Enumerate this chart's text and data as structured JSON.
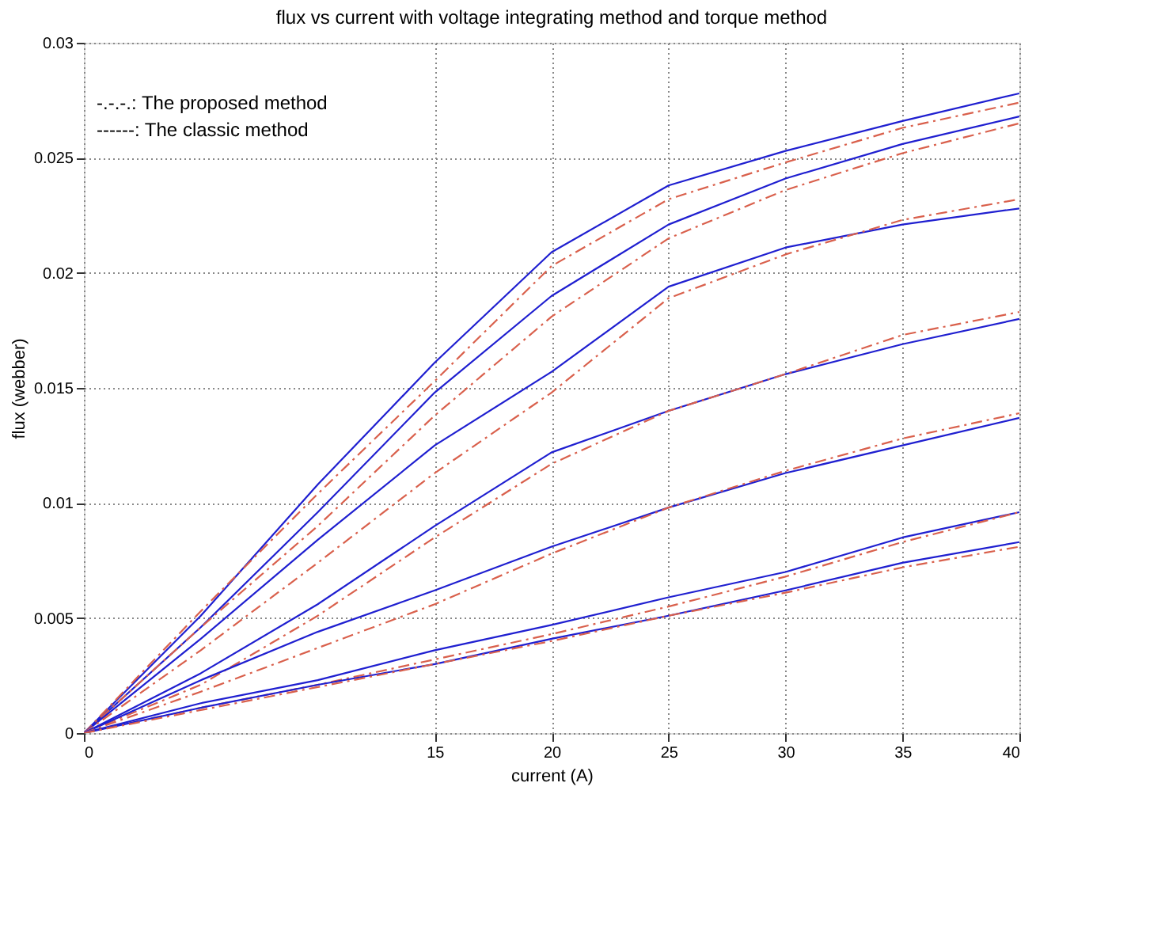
{
  "chart_data": {
    "type": "line",
    "title": "flux vs current with voltage integrating method and torque method",
    "xlabel": "current (A)",
    "ylabel": "flux (webber)",
    "x": [
      0,
      5,
      10,
      15,
      20,
      25,
      30,
      35,
      40
    ],
    "xlim": [
      0,
      40
    ],
    "xticks": [
      0,
      15,
      20,
      25,
      30,
      35,
      40
    ],
    "ylim": [
      0,
      0.03
    ],
    "yticks": [
      0,
      0.005,
      0.01,
      0.015,
      0.02,
      0.025,
      0.03
    ],
    "grid": true,
    "marker": "none",
    "annotations": [
      "-.-.-.: The proposed method",
      "------: The classic method"
    ],
    "series": [
      {
        "color": "#1f1fd0",
        "line_style": "solid",
        "values": [
          0,
          0.0051,
          0.0108,
          0.0161,
          0.0209,
          0.0238,
          0.0253,
          0.0266,
          0.0278
        ]
      },
      {
        "color": "#d9604c",
        "line_style": "dashed",
        "values": [
          0,
          0.0053,
          0.0104,
          0.0153,
          0.0203,
          0.0232,
          0.0248,
          0.0263,
          0.0274
        ]
      },
      {
        "color": "#1f1fd0",
        "line_style": "solid",
        "values": [
          0,
          0.0046,
          0.0096,
          0.0148,
          0.019,
          0.0221,
          0.0241,
          0.0256,
          0.0268
        ]
      },
      {
        "color": "#d9604c",
        "line_style": "dashed",
        "values": [
          0,
          0.0046,
          0.009,
          0.0138,
          0.0181,
          0.0215,
          0.0236,
          0.0252,
          0.0265
        ]
      },
      {
        "color": "#1f1fd0",
        "line_style": "solid",
        "values": [
          0,
          0.0041,
          0.0084,
          0.0125,
          0.0157,
          0.0194,
          0.0211,
          0.0221,
          0.0228
        ]
      },
      {
        "color": "#d9604c",
        "line_style": "dashed",
        "values": [
          0,
          0.0036,
          0.0074,
          0.0113,
          0.0148,
          0.0189,
          0.0208,
          0.0223,
          0.0232
        ]
      },
      {
        "color": "#1f1fd0",
        "line_style": "solid",
        "values": [
          0,
          0.0026,
          0.0056,
          0.009,
          0.0122,
          0.014,
          0.0156,
          0.0169,
          0.018
        ]
      },
      {
        "color": "#d9604c",
        "line_style": "dashed",
        "values": [
          0,
          0.0021,
          0.0051,
          0.0085,
          0.0117,
          0.014,
          0.0156,
          0.0173,
          0.0183
        ]
      },
      {
        "color": "#1f1fd0",
        "line_style": "solid",
        "values": [
          0,
          0.0023,
          0.0044,
          0.0062,
          0.0081,
          0.0098,
          0.0113,
          0.0125,
          0.0137
        ]
      },
      {
        "color": "#d9604c",
        "line_style": "dashed",
        "values": [
          0,
          0.0018,
          0.0037,
          0.0056,
          0.0078,
          0.0098,
          0.0114,
          0.0128,
          0.0139
        ]
      },
      {
        "color": "#1f1fd0",
        "line_style": "solid",
        "values": [
          0,
          0.0013,
          0.0023,
          0.0036,
          0.0047,
          0.0059,
          0.007,
          0.0085,
          0.0096
        ]
      },
      {
        "color": "#d9604c",
        "line_style": "dashed",
        "values": [
          0,
          0.0011,
          0.0021,
          0.0032,
          0.0043,
          0.0055,
          0.0068,
          0.0083,
          0.0096
        ]
      },
      {
        "color": "#1f1fd0",
        "line_style": "solid",
        "values": [
          0,
          0.0011,
          0.0021,
          0.003,
          0.0041,
          0.0051,
          0.0062,
          0.0074,
          0.0083
        ]
      },
      {
        "color": "#d9604c",
        "line_style": "dashed",
        "values": [
          0,
          0.001,
          0.002,
          0.003,
          0.004,
          0.0051,
          0.0061,
          0.0072,
          0.0081
        ]
      }
    ]
  }
}
